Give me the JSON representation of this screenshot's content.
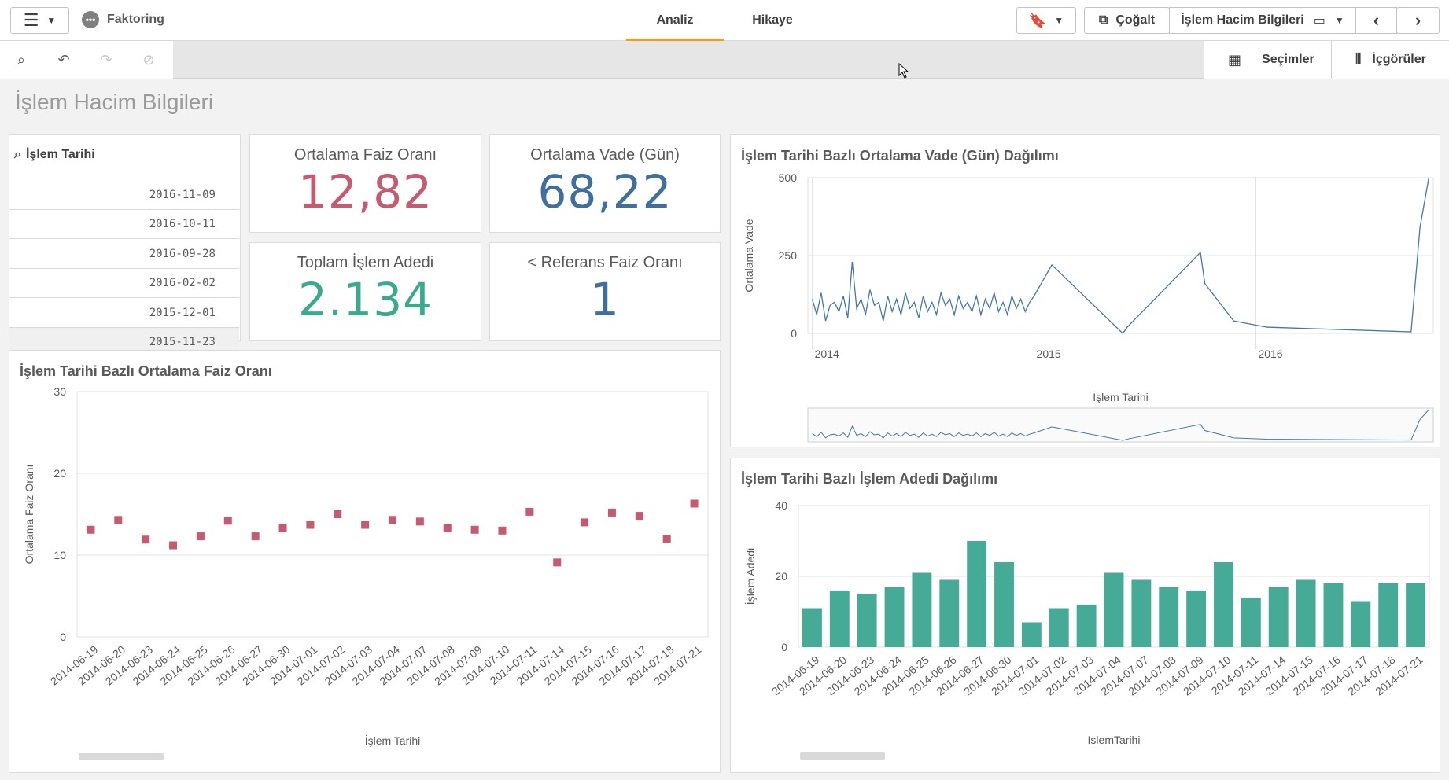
{
  "app": {
    "name": "Faktoring"
  },
  "tabs": [
    {
      "label": "Analiz",
      "active": true
    },
    {
      "label": "Hikaye",
      "active": false
    }
  ],
  "toolbar": {
    "duplicate_label": "Çoğalt",
    "sheet_selector_label": "İşlem Hacim Bilgileri",
    "selections_label": "Seçimler",
    "insights_label": "İçgörüler"
  },
  "sheet": {
    "title": "İşlem Hacim Bilgileri"
  },
  "filter": {
    "field": "İşlem Tarihi",
    "items": [
      "2016-11-09",
      "2016-10-11",
      "2016-09-28",
      "2016-02-02",
      "2015-12-01",
      "2015-11-23"
    ]
  },
  "kpis": [
    {
      "title": "Ortalama Faiz Oranı",
      "value": "12,82",
      "color": "#c75a6f"
    },
    {
      "title": "Ortalama Vade (Gün)",
      "value": "68,22",
      "color": "#3f6f9f"
    },
    {
      "title": "Toplam İşlem Adedi",
      "value": "2.134",
      "color": "#3aaa8e"
    },
    {
      "title": "< Referans Faiz Oranı",
      "value": "1",
      "color": "#3f6f9f"
    }
  ],
  "colors": {
    "accent": "#f8981d",
    "scatter": "#c75a6f",
    "line": "#4477aa",
    "bar": "#45ab96"
  },
  "chart_data": [
    {
      "type": "line",
      "title": "İşlem Tarihi Bazlı Ortalama Vade (Gün) Dağılımı",
      "xlabel": "İşlem Tarihi",
      "ylabel": "Ortalama Vade",
      "ylim": [
        0,
        500
      ],
      "yticks": [
        0,
        250,
        500
      ],
      "xticks": [
        2014,
        2015,
        2016
      ],
      "x": [
        2014.0,
        2014.02,
        2014.04,
        2014.06,
        2014.08,
        2014.1,
        2014.12,
        2014.14,
        2014.16,
        2014.18,
        2014.2,
        2014.22,
        2014.24,
        2014.26,
        2014.28,
        2014.3,
        2014.32,
        2014.34,
        2014.36,
        2014.38,
        2014.4,
        2014.42,
        2014.44,
        2014.46,
        2014.48,
        2014.5,
        2014.52,
        2014.54,
        2014.56,
        2014.58,
        2014.6,
        2014.62,
        2014.64,
        2014.66,
        2014.68,
        2014.7,
        2014.72,
        2014.74,
        2014.76,
        2014.78,
        2014.8,
        2014.82,
        2014.84,
        2014.86,
        2014.88,
        2014.9,
        2014.92,
        2014.94,
        2014.96,
        2014.98,
        2015.0,
        2015.08,
        2015.4,
        2015.42,
        2015.75,
        2015.77,
        2015.9,
        2016.05,
        2016.7,
        2016.74,
        2016.78
      ],
      "y": [
        110,
        60,
        130,
        40,
        90,
        100,
        70,
        120,
        50,
        230,
        80,
        110,
        60,
        140,
        90,
        100,
        40,
        120,
        70,
        110,
        60,
        130,
        80,
        100,
        50,
        120,
        70,
        100,
        60,
        130,
        90,
        110,
        60,
        120,
        80,
        100,
        70,
        120,
        60,
        110,
        80,
        130,
        70,
        100,
        60,
        120,
        80,
        110,
        70,
        100,
        120,
        220,
        0,
        20,
        260,
        160,
        40,
        20,
        5,
        340,
        510
      ]
    },
    {
      "type": "scatter",
      "title": "İşlem Tarihi Bazlı Ortalama Faiz Oranı",
      "xlabel": "İşlem Tarihi",
      "ylabel": "Ortalama Faiz Oranı",
      "ylim": [
        0,
        30
      ],
      "yticks": [
        0,
        10,
        20,
        30
      ],
      "categories": [
        "2014-06-19",
        "2014-06-20",
        "2014-06-23",
        "2014-06-24",
        "2014-06-25",
        "2014-06-26",
        "2014-06-27",
        "2014-06-30",
        "2014-07-01",
        "2014-07-02",
        "2014-07-03",
        "2014-07-04",
        "2014-07-07",
        "2014-07-08",
        "2014-07-09",
        "2014-07-10",
        "2014-07-11",
        "2014-07-14",
        "2014-07-15",
        "2014-07-16",
        "2014-07-17",
        "2014-07-18",
        "2014-07-21"
      ],
      "values": [
        13.1,
        14.3,
        11.9,
        11.2,
        12.3,
        14.2,
        12.3,
        13.3,
        13.7,
        15.0,
        13.7,
        14.3,
        14.1,
        13.3,
        13.1,
        13.0,
        15.3,
        9.1,
        14.0,
        15.2,
        14.8,
        12.0,
        16.3
      ]
    },
    {
      "type": "bar",
      "title": "İşlem Tarihi Bazlı İşlem Adedi Dağılımı",
      "xlabel": "IslemTarihi",
      "ylabel": "İşlem Adedi",
      "ylim": [
        0,
        40
      ],
      "yticks": [
        0,
        20,
        40
      ],
      "categories": [
        "2014-06-19",
        "2014-06-20",
        "2014-06-23",
        "2014-06-24",
        "2014-06-25",
        "2014-06-26",
        "2014-06-27",
        "2014-06-30",
        "2014-07-01",
        "2014-07-02",
        "2014-07-03",
        "2014-07-04",
        "2014-07-07",
        "2014-07-08",
        "2014-07-09",
        "2014-07-10",
        "2014-07-11",
        "2014-07-14",
        "2014-07-15",
        "2014-07-16",
        "2014-07-17",
        "2014-07-18",
        "2014-07-21"
      ],
      "values": [
        11,
        16,
        15,
        17,
        21,
        19,
        30,
        24,
        7,
        11,
        12,
        21,
        19,
        17,
        16,
        24,
        14,
        17,
        19,
        18,
        13,
        18,
        18
      ]
    }
  ]
}
